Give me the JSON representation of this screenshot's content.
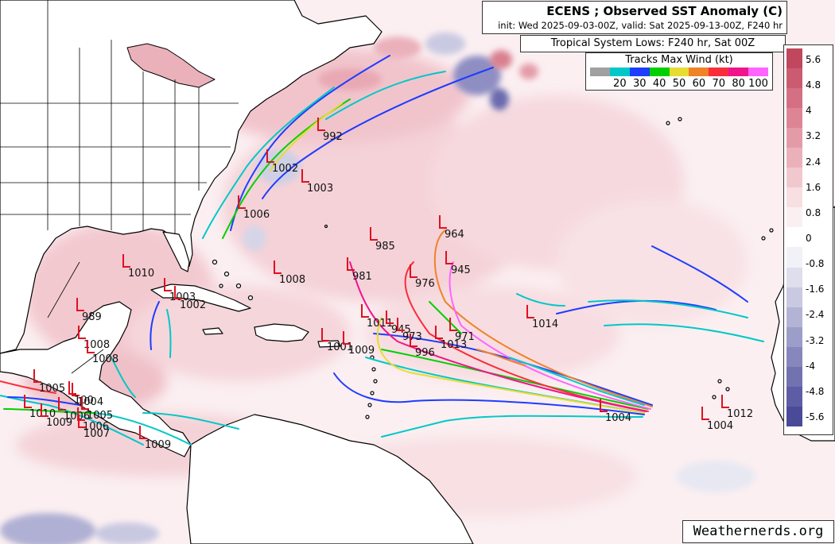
{
  "title": {
    "main": "ECENS ; Observed SST Anomaly (C)",
    "sub": "init: Wed 2025-09-03-00Z, valid: Sat 2025-09-13-00Z, F240 hr"
  },
  "subtitle": "Tropical System Lows: F240 hr, Sat 00Z",
  "wind_legend": {
    "title": "Tracks Max Wind (kt)",
    "labels": [
      "20",
      "30",
      "40",
      "50",
      "60",
      "70",
      "80",
      "100"
    ],
    "colors": [
      "#a0a0a0",
      "#00c8c8",
      "#1e3cff",
      "#00d000",
      "#e6dc32",
      "#f08228",
      "#fa2d3c",
      "#f0148c",
      "#ff64ff"
    ]
  },
  "sst_colorbar": {
    "labels": [
      "5.6",
      "4.8",
      "4",
      "3.2",
      "2.4",
      "1.6",
      "0.8",
      "0",
      "-0.8",
      "-1.6",
      "-2.4",
      "-3.2",
      "-4",
      "-4.8",
      "-5.6"
    ],
    "colors": [
      "#c0475e",
      "#cb5b71",
      "#d56f83",
      "#dd8595",
      "#e49ba8",
      "#ebb1bb",
      "#f1c8ce",
      "#f7dfe2",
      "#fbf0f1",
      "#ffffff",
      "#f1f1f7",
      "#dedeec",
      "#c9c9e1",
      "#b3b3d5",
      "#9d9dc9",
      "#8787bd",
      "#7272b1",
      "#5d5da5",
      "#4a4a99"
    ]
  },
  "low_markers": [
    {
      "label": "992"
    },
    {
      "label": "1002"
    },
    {
      "label": "1003"
    },
    {
      "label": "1006"
    },
    {
      "label": "985"
    },
    {
      "label": "964"
    },
    {
      "label": "945"
    },
    {
      "label": "976"
    },
    {
      "label": "981"
    },
    {
      "label": "1008"
    },
    {
      "label": "1010"
    },
    {
      "label": "1003"
    },
    {
      "label": "1002"
    },
    {
      "label": "989"
    },
    {
      "label": "1008"
    },
    {
      "label": "1008"
    },
    {
      "label": "1014"
    },
    {
      "label": "1011"
    },
    {
      "label": "945"
    },
    {
      "label": "973"
    },
    {
      "label": "971"
    },
    {
      "label": "1013"
    },
    {
      "label": "996"
    },
    {
      "label": "1001"
    },
    {
      "label": "1009"
    },
    {
      "label": "1004"
    },
    {
      "label": "1004"
    },
    {
      "label": "1012"
    },
    {
      "label": "1005"
    },
    {
      "label": "1004"
    },
    {
      "label": "100"
    },
    {
      "label": "1010"
    },
    {
      "label": "1009"
    },
    {
      "label": "1006"
    },
    {
      "label": "1005"
    },
    {
      "label": "1006"
    },
    {
      "label": "1007"
    },
    {
      "label": "1009"
    }
  ],
  "credit": "Weathernerds.org"
}
